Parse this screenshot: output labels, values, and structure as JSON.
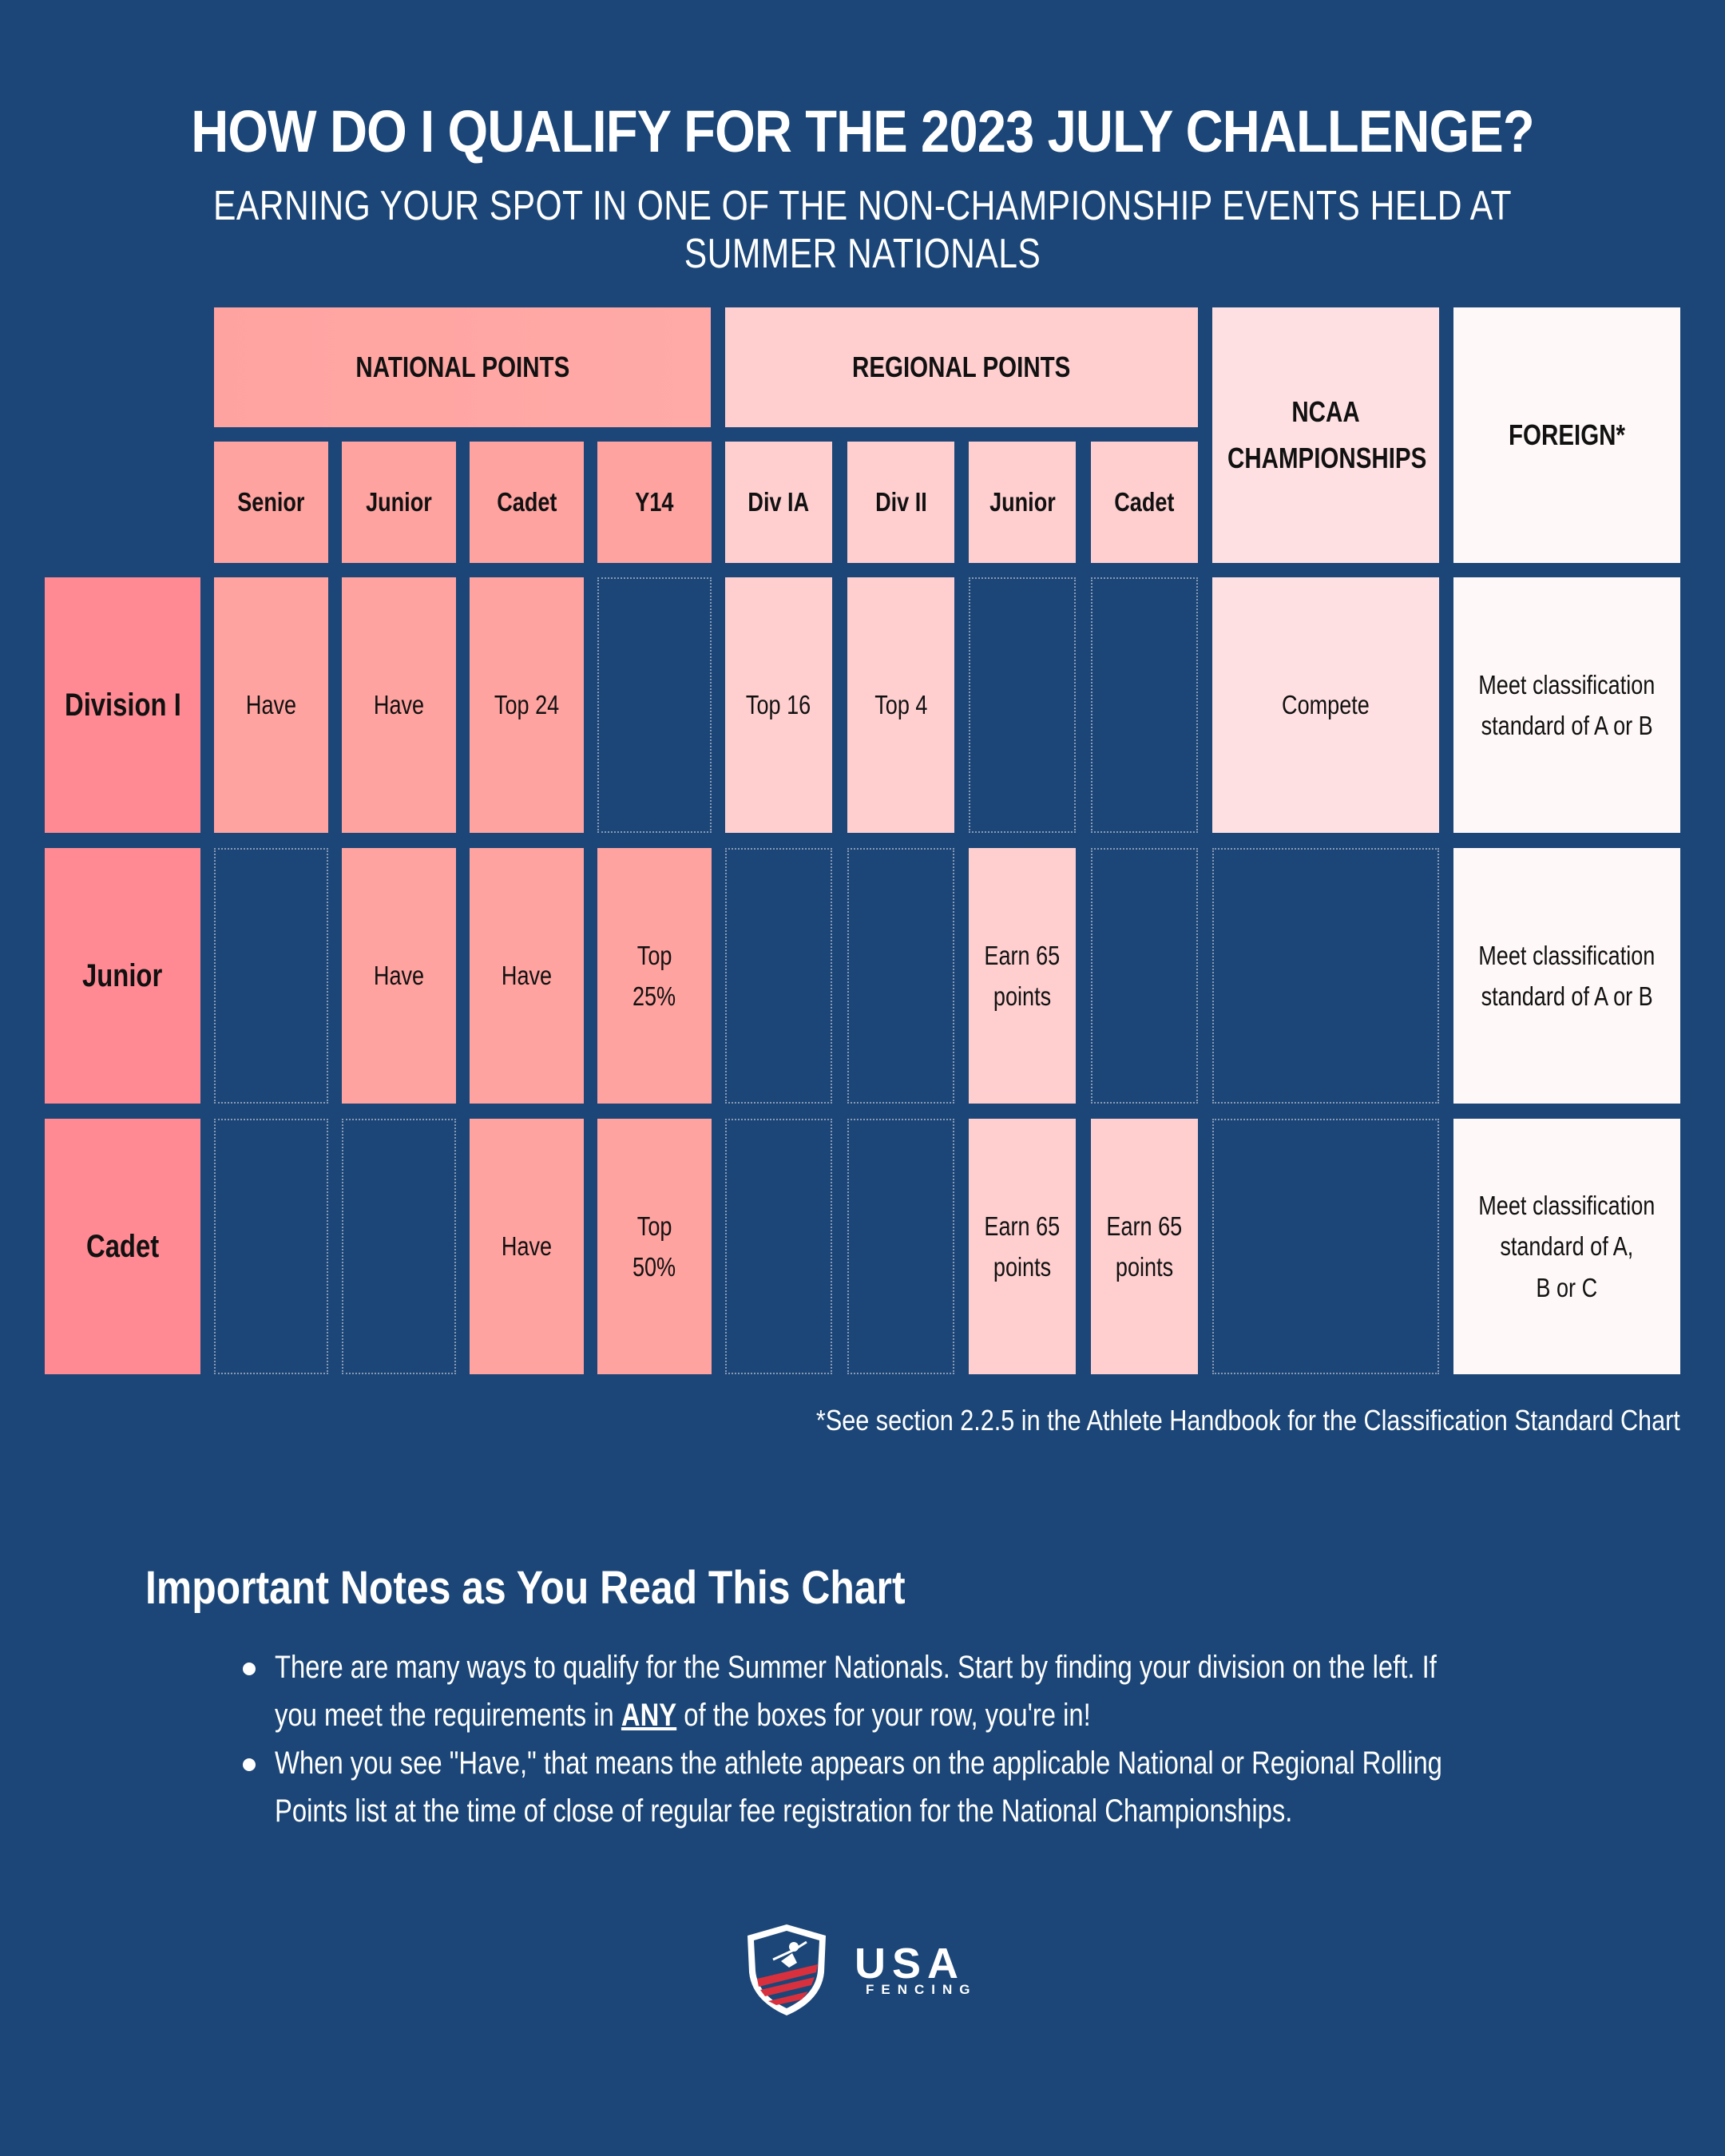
{
  "header": {
    "title": "HOW DO I QUALIFY FOR THE 2023 JULY CHALLENGE?",
    "subtitle": "EARNING YOUR SPOT IN ONE OF THE NON-CHAMPIONSHIP EVENTS HELD AT SUMMER NATIONALS"
  },
  "table": {
    "groups": {
      "national": "NATIONAL POINTS",
      "regional": "REGIONAL POINTS",
      "ncaa": "NCAA CHAMPIONSHIPS",
      "foreign": "FOREIGN*"
    },
    "columns": {
      "nat_senior": "Senior",
      "nat_junior": "Junior",
      "nat_cadet": "Cadet",
      "nat_y14": "Y14",
      "reg_div1a": "Div IA",
      "reg_div2": "Div II",
      "reg_junior": "Junior",
      "reg_cadet": "Cadet"
    },
    "rows": {
      "div1": {
        "label": "Division I",
        "nat_senior": "Have",
        "nat_junior": "Have",
        "nat_cadet": "Top 24",
        "reg_div1a": "Top 16",
        "reg_div2": "Top 4",
        "ncaa": "Compete",
        "foreign_l1": "Meet classification",
        "foreign_l2": "standard of A or B"
      },
      "junior": {
        "label": "Junior",
        "nat_junior": "Have",
        "nat_cadet": "Have",
        "nat_y14_l1": "Top",
        "nat_y14_l2": "25%",
        "reg_junior_l1": "Earn 65",
        "reg_junior_l2": "points",
        "foreign_l1": "Meet classification",
        "foreign_l2": "standard of A or B"
      },
      "cadet": {
        "label": "Cadet",
        "nat_cadet": "Have",
        "nat_y14_l1": "Top",
        "nat_y14_l2": "50%",
        "reg_junior_l1": "Earn 65",
        "reg_junior_l2": "points",
        "reg_cadet_l1": "Earn 65",
        "reg_cadet_l2": "points",
        "foreign_l1": "Meet classification",
        "foreign_l2": "standard of A,",
        "foreign_l3": "B or C"
      }
    },
    "footnote": "*See section 2.2.5 in the Athlete Handbook for the Classification Standard Chart"
  },
  "notes": {
    "title": "Important Notes as You Read This Chart",
    "item1_a": "There are many ways to qualify for the Summer Nationals. Start by finding your division on the left. If",
    "item1_b": "you meet the requirements in",
    "item1_any": "ANY",
    "item1_c": "of the boxes for your row, you're in!",
    "item2_a": "When you see \"Have,\" that means the athlete appears on the applicable National or Regional Rolling",
    "item2_b": "Points list at the time of close of regular fee registration for the National Championships."
  },
  "logo": {
    "usa": "USA",
    "fencing": "FENCING"
  },
  "colors": {
    "background": "#1b4677",
    "row_label": "#ff8a93",
    "national": "#ffa3a0",
    "regional": "#ffcfd0",
    "ncaa": "#ffe0e2",
    "foreign": "#fff8f8"
  }
}
